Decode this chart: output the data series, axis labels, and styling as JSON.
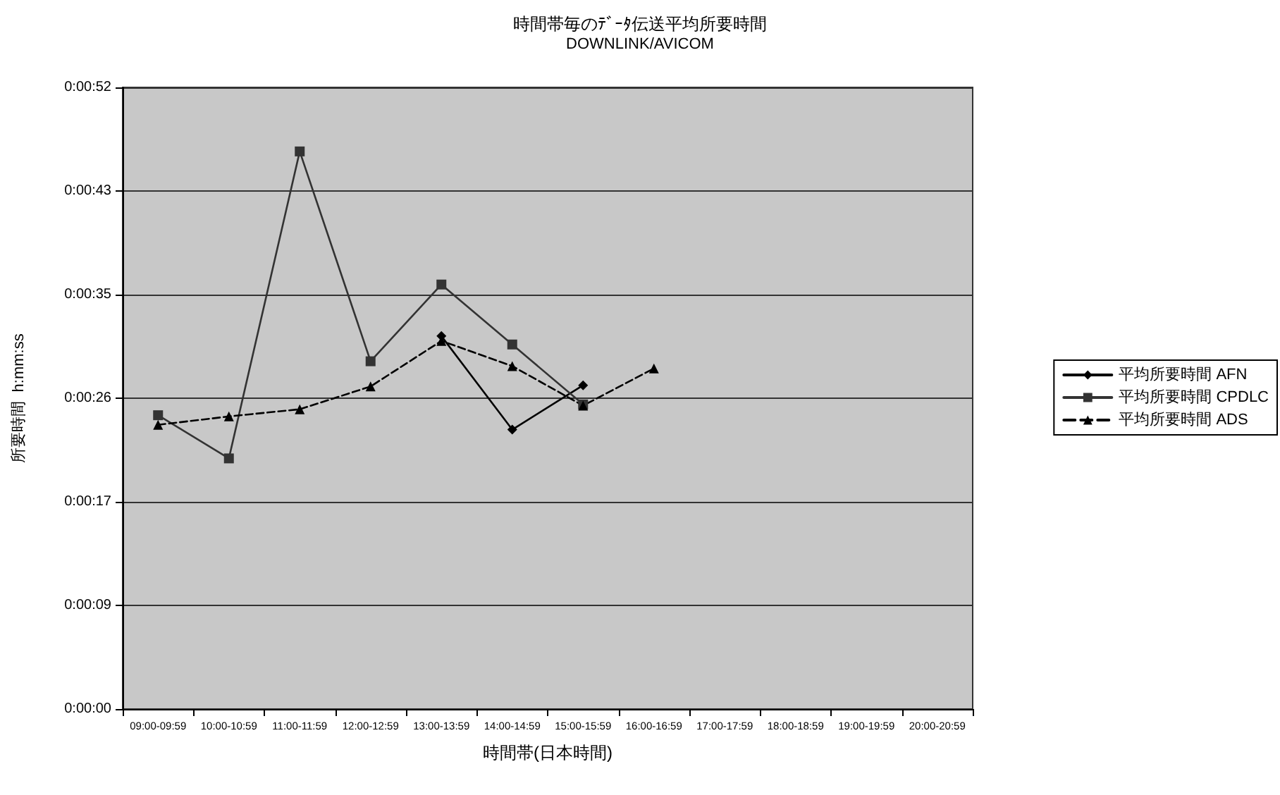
{
  "chart_data": {
    "type": "line",
    "title": "時間帯毎のﾃﾞｰﾀ伝送平均所要時間",
    "subtitle": "DOWNLINK/AVICOM",
    "xlabel": "時間帯(日本時間)",
    "ylabel": "所要時間  h:mm:ss",
    "categories": [
      "09:00-09:59",
      "10:00-10:59",
      "11:00-11:59",
      "12:00-12:59",
      "13:00-13:59",
      "14:00-14:59",
      "15:00-15:59",
      "16:00-16:59",
      "17:00-17:59",
      "18:00-18:59",
      "19:00-19:59",
      "20:00-20:59"
    ],
    "series": [
      {
        "name": "平均所要時間 AFN",
        "color": "#000000",
        "marker": "diamond",
        "line_style": "solid",
        "values": [
          null,
          null,
          null,
          null,
          31.1,
          23.3,
          27.0,
          null,
          null,
          null,
          null,
          null
        ]
      },
      {
        "name": "平均所要時間 CPDLC",
        "color": "#333333",
        "marker": "square",
        "line_style": "solid",
        "values": [
          24.5,
          20.9,
          46.5,
          29.0,
          35.4,
          30.4,
          25.4,
          null,
          null,
          null,
          null,
          null
        ]
      },
      {
        "name": "平均所要時間 ADS",
        "color": "#000000",
        "marker": "triangle",
        "line_style": "dashed",
        "values": [
          23.7,
          24.4,
          25.0,
          26.9,
          30.7,
          28.6,
          25.3,
          28.4,
          null,
          null,
          null,
          null
        ]
      }
    ],
    "ylim": [
      0,
      51.84
    ],
    "yticks": [
      {
        "value": 0,
        "label": "0:00:00"
      },
      {
        "value": 8.64,
        "label": "0:00:09"
      },
      {
        "value": 17.28,
        "label": "0:00:17"
      },
      {
        "value": 25.92,
        "label": "0:00:26"
      },
      {
        "value": 34.56,
        "label": "0:00:35"
      },
      {
        "value": 43.2,
        "label": "0:00:43"
      },
      {
        "value": 51.84,
        "label": "0:00:52"
      }
    ],
    "grid": "y",
    "legend": "right"
  }
}
